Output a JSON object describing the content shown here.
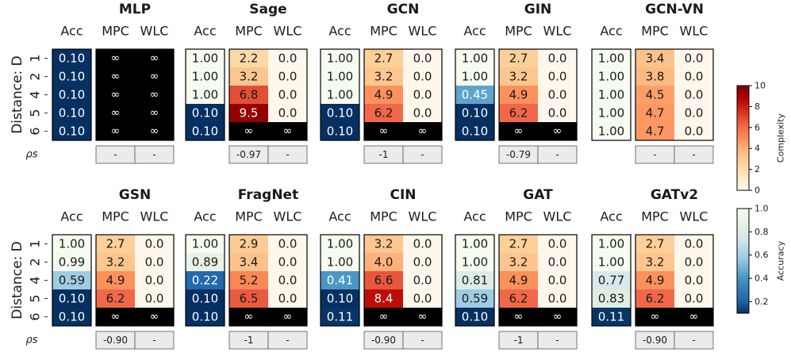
{
  "chart_data": {
    "type": "heatmap",
    "row_axis_label": "Distance: D",
    "row_labels": [
      "1",
      "2",
      "4",
      "5",
      "6"
    ],
    "column_headers": [
      "Acc",
      "MPC",
      "WLC"
    ],
    "rho_label": "ρs",
    "infinity_symbol": "∞",
    "rows_of_panels": [
      [
        {
          "title": "MLP",
          "acc": [
            0.1,
            0.1,
            0.1,
            0.1,
            0.1
          ],
          "mpc": [
            null,
            null,
            null,
            null,
            null
          ],
          "wlc": [
            null,
            null,
            null,
            null,
            null
          ],
          "rho_mpc": "-",
          "rho_wlc": "-"
        },
        {
          "title": "Sage",
          "acc": [
            1.0,
            1.0,
            1.0,
            0.1,
            0.1
          ],
          "mpc": [
            2.2,
            3.2,
            6.8,
            9.5,
            null
          ],
          "wlc": [
            0.0,
            0.0,
            0.0,
            0.0,
            null
          ],
          "rho_mpc": "-0.97",
          "rho_wlc": "-"
        },
        {
          "title": "GCN",
          "acc": [
            1.0,
            1.0,
            1.0,
            0.1,
            0.1
          ],
          "mpc": [
            2.7,
            3.2,
            4.9,
            6.2,
            null
          ],
          "wlc": [
            0.0,
            0.0,
            0.0,
            0.0,
            null
          ],
          "rho_mpc": "-1",
          "rho_wlc": "-"
        },
        {
          "title": "GIN",
          "acc": [
            1.0,
            1.0,
            0.45,
            0.1,
            0.1
          ],
          "mpc": [
            2.7,
            3.2,
            4.9,
            6.2,
            null
          ],
          "wlc": [
            0.0,
            0.0,
            0.0,
            0.0,
            null
          ],
          "rho_mpc": "-0.79",
          "rho_wlc": "-"
        },
        {
          "title": "GCN-VN",
          "acc": [
            1.0,
            1.0,
            1.0,
            1.0,
            1.0
          ],
          "mpc": [
            3.4,
            3.8,
            4.5,
            4.7,
            4.7
          ],
          "wlc": [
            0.0,
            0.0,
            0.0,
            0.0,
            0.0
          ],
          "rho_mpc": "-",
          "rho_wlc": "-"
        }
      ],
      [
        {
          "title": "GSN",
          "acc": [
            1.0,
            0.99,
            0.59,
            0.1,
            0.1
          ],
          "mpc": [
            2.7,
            3.2,
            4.9,
            6.2,
            null
          ],
          "wlc": [
            0.0,
            0.0,
            0.0,
            0.0,
            null
          ],
          "rho_mpc": "-0.90",
          "rho_wlc": "-"
        },
        {
          "title": "FragNet",
          "acc": [
            1.0,
            0.89,
            0.22,
            0.1,
            0.1
          ],
          "mpc": [
            2.9,
            3.4,
            5.2,
            6.5,
            null
          ],
          "wlc": [
            0.0,
            0.0,
            0.0,
            0.0,
            null
          ],
          "rho_mpc": "-1",
          "rho_wlc": "-"
        },
        {
          "title": "CIN",
          "acc": [
            1.0,
            1.0,
            0.41,
            0.1,
            0.11
          ],
          "mpc": [
            3.2,
            4.0,
            6.6,
            8.4,
            null
          ],
          "wlc": [
            0.0,
            0.0,
            0.0,
            0.0,
            null
          ],
          "rho_mpc": "-0.90",
          "rho_wlc": "-"
        },
        {
          "title": "GAT",
          "acc": [
            1.0,
            1.0,
            0.81,
            0.59,
            0.1
          ],
          "mpc": [
            2.7,
            3.2,
            4.9,
            6.2,
            null
          ],
          "wlc": [
            0.0,
            0.0,
            0.0,
            0.0,
            null
          ],
          "rho_mpc": "-1",
          "rho_wlc": "-"
        },
        {
          "title": "GATv2",
          "acc": [
            1.0,
            1.0,
            0.77,
            0.83,
            0.11
          ],
          "mpc": [
            2.7,
            3.2,
            4.9,
            6.2,
            null
          ],
          "wlc": [
            0.0,
            0.0,
            0.0,
            0.0,
            null
          ],
          "rho_mpc": "-0.90",
          "rho_wlc": "-"
        }
      ]
    ],
    "colorbars": [
      {
        "label": "Complexity",
        "min": 0,
        "max": 10,
        "ticks": [
          "0",
          "2",
          "4",
          "6",
          "8",
          "10"
        ],
        "colormap": "OrRd"
      },
      {
        "label": "Accuracy",
        "min": 0.1,
        "max": 1.0,
        "ticks": [
          "0.2",
          "0.4",
          "0.6",
          "0.8",
          "1.0"
        ],
        "colormap": "RdBu"
      }
    ]
  },
  "colors": {
    "infinity_cell": "#000000",
    "rho_cell": "#ebebeb",
    "text_dark": "#1a1a1a",
    "text_light": "#ffffff"
  }
}
